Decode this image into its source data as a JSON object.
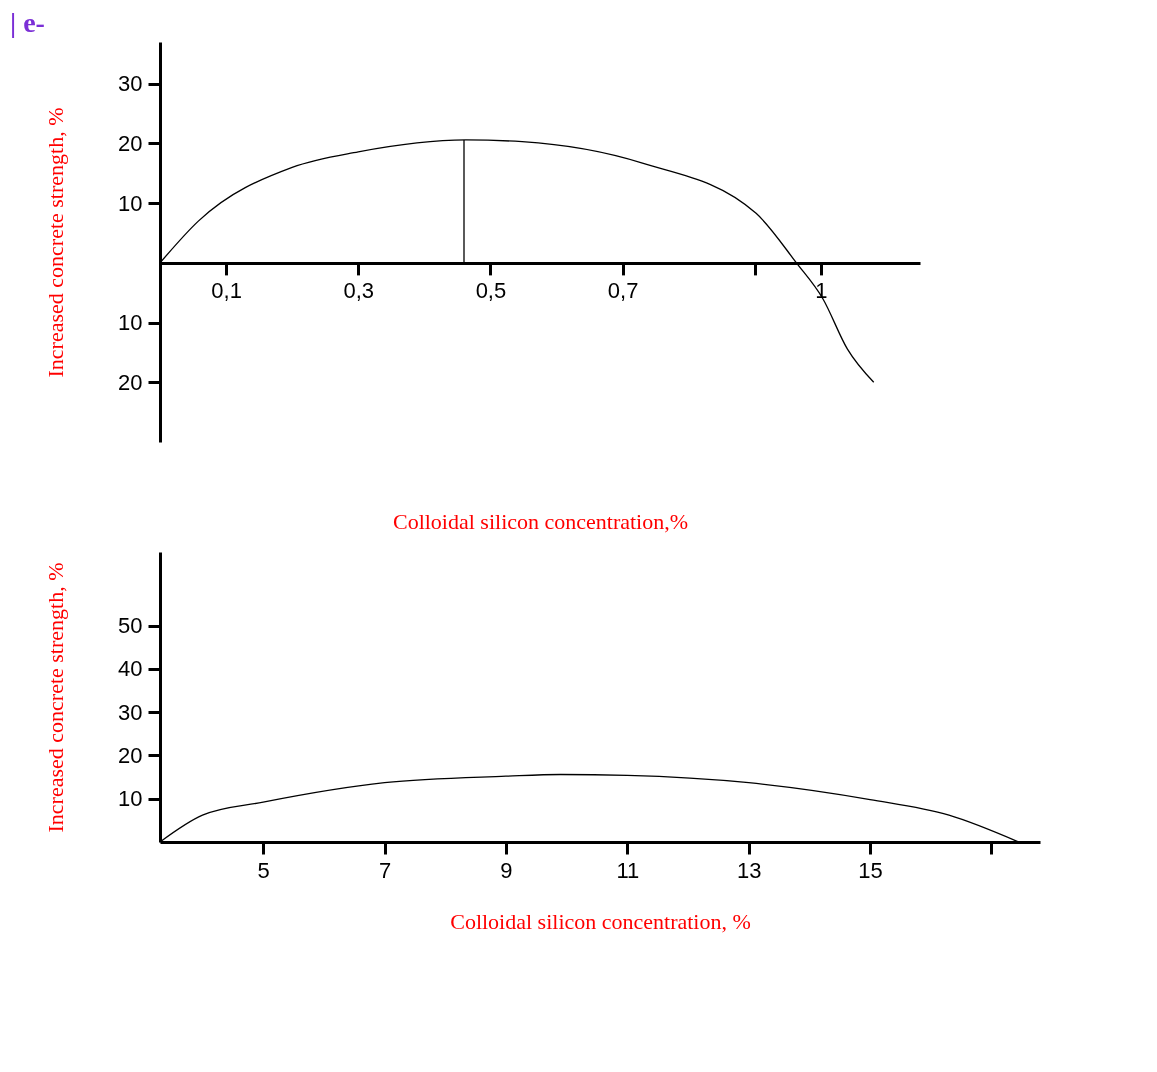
{
  "chart_data": [
    {
      "type": "line",
      "title": "| e-",
      "xlabel": "Colloidal silicon concentration,%",
      "ylabel": "Increased concrete strength, %",
      "xlim": [
        0,
        1.15
      ],
      "xticks": [
        {
          "value": 0.1,
          "label": "0,1"
        },
        {
          "value": 0.3,
          "label": "0,3"
        },
        {
          "value": 0.5,
          "label": "0,5"
        },
        {
          "value": 0.7,
          "label": "0,7"
        },
        {
          "value": 0.9,
          "label": null
        },
        1
      ],
      "ylim": [
        -30,
        37
      ],
      "yticks": [
        {
          "value": -20,
          "label": "20"
        },
        {
          "value": -10,
          "label": "10"
        },
        10,
        20,
        30
      ],
      "series": [
        {
          "color": "#000000",
          "x": [
            0,
            0.058,
            0.2,
            0.3,
            0.463,
            0.548,
            0.73,
            0.902,
            0.963,
            1.003,
            1.04,
            1.08
          ],
          "values": [
            0,
            7,
            16,
            18.6,
            20.6,
            20.3,
            16.7,
            8.3,
            0,
            -6,
            -14.4,
            -20
          ]
        },
        {
          "color": "#000000",
          "x": [
            0.46,
            0.46
          ],
          "values": [
            0,
            20.6
          ]
        }
      ]
    },
    {
      "type": "line",
      "xlabel": "Colloidal silicon concentration, %",
      "ylabel": "Increased concrete strength, %",
      "xlim": [
        3.3,
        17.8
      ],
      "xticks": [
        5,
        7,
        9,
        11,
        13,
        15,
        {
          "value": 17,
          "label": null
        }
      ],
      "ylim": [
        0,
        67
      ],
      "yticks": [
        10,
        20,
        30,
        40,
        50
      ],
      "series": [
        {
          "color": "#000000",
          "x": [
            3.3,
            4.0,
            5,
            7,
            9,
            9.9,
            11,
            13,
            15,
            16.3,
            17.45
          ],
          "values": [
            0,
            6.2,
            9.2,
            13.7,
            15.2,
            15.6,
            15.4,
            13.7,
            9.8,
            6.2,
            0
          ]
        }
      ]
    }
  ]
}
